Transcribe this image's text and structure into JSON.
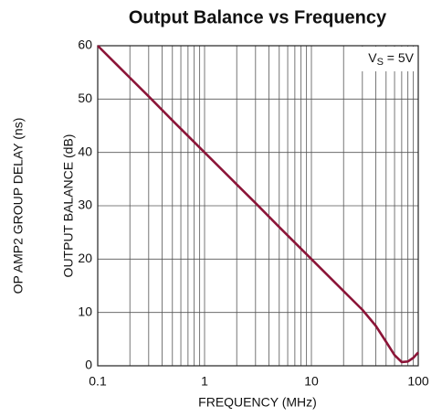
{
  "chart_data": {
    "type": "line",
    "title": "Output Balance vs Frequency",
    "xlabel": "FREQUENCY (MHz)",
    "ylabel": "OUTPUT BALANCE (dB)",
    "ylabel2": "OP AMP2 GROUP DELAY (ns)",
    "annotation": [
      "V",
      "S",
      " = 5V"
    ],
    "x": [
      0.1,
      0.2,
      0.3,
      0.5,
      1,
      2,
      3,
      5,
      10,
      20,
      30,
      40,
      50,
      60,
      70,
      80,
      90,
      100
    ],
    "series": [
      {
        "name": "Output Balance",
        "color": "#8b1538",
        "values": [
          60,
          54,
          50.5,
          46,
          40,
          34,
          30.5,
          26,
          20,
          14,
          10.5,
          7.5,
          4.5,
          2,
          0.7,
          0.8,
          1.5,
          2.5
        ]
      }
    ],
    "xscale": "log",
    "xlim": [
      0.1,
      100
    ],
    "xticks": [
      0.1,
      1,
      10,
      100
    ],
    "xminorticks": [
      0.2,
      0.3,
      0.4,
      0.5,
      0.6,
      0.7,
      0.8,
      0.9,
      2,
      3,
      4,
      5,
      6,
      7,
      8,
      9,
      20,
      30,
      40,
      50,
      60,
      70,
      80,
      90
    ],
    "ylim": [
      0,
      60
    ],
    "yticks": [
      0,
      10,
      20,
      30,
      40,
      50,
      60
    ],
    "grid": true
  }
}
